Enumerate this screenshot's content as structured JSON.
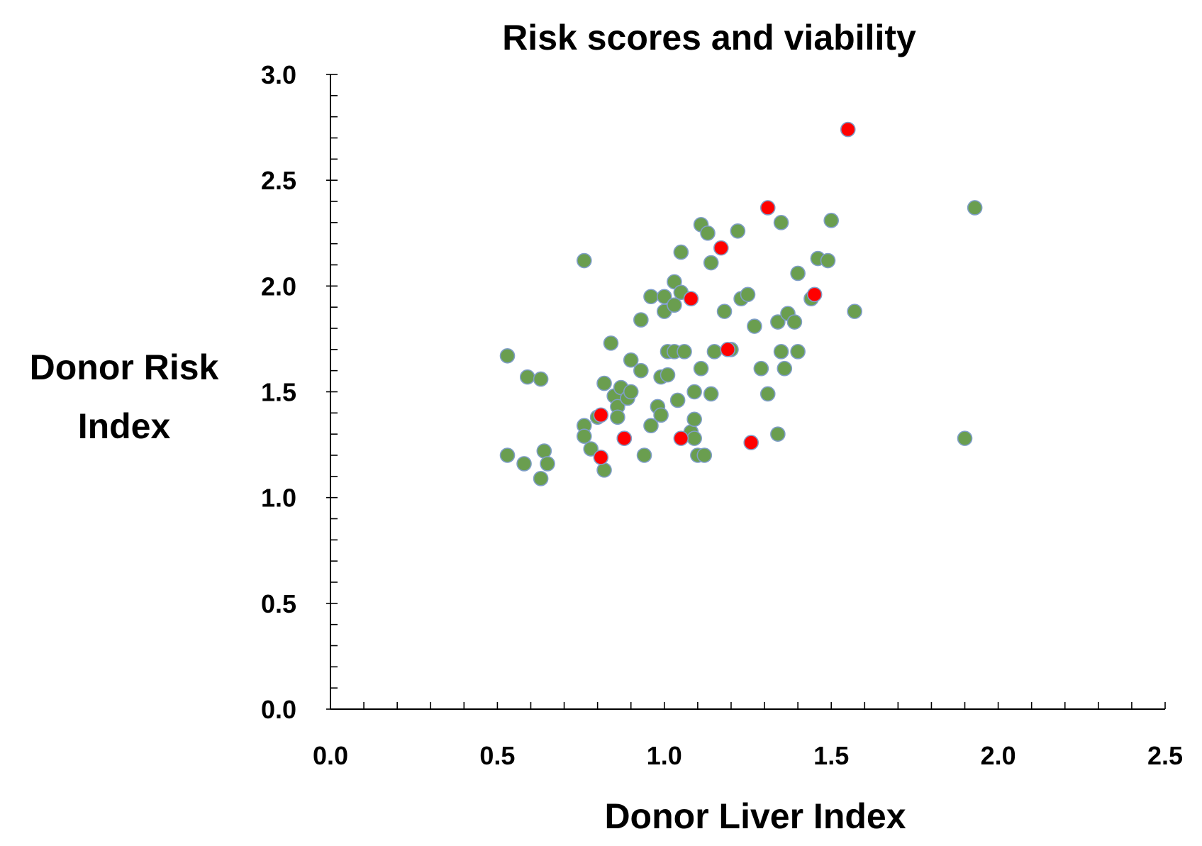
{
  "chart_data": {
    "type": "scatter",
    "title": "Risk scores and viability",
    "xlabel": "Donor Liver Index",
    "ylabel_lines": [
      "Donor Risk",
      "Index"
    ],
    "xlim": [
      0.0,
      2.5
    ],
    "ylim": [
      0.0,
      3.0
    ],
    "x_ticks": [
      0.0,
      0.5,
      1.0,
      1.5,
      2.0,
      2.5
    ],
    "y_ticks": [
      0.0,
      0.5,
      1.0,
      1.5,
      2.0,
      2.5,
      3.0
    ],
    "x_tick_labels": [
      "0.0",
      "0.5",
      "1.0",
      "1.5",
      "2.0",
      "2.5"
    ],
    "y_tick_labels": [
      "0.0",
      "0.5",
      "1.0",
      "1.5",
      "2.0",
      "2.5",
      "3.0"
    ],
    "x_minor_step": 0.1,
    "y_minor_step": 0.1,
    "grid": false,
    "series": [
      {
        "name": "green",
        "color": "#6a9e4f",
        "edge_color": "#7f9ec8",
        "points": [
          [
            0.53,
            1.67
          ],
          [
            0.53,
            1.2
          ],
          [
            0.58,
            1.16
          ],
          [
            0.59,
            1.57
          ],
          [
            0.63,
            1.56
          ],
          [
            0.63,
            1.09
          ],
          [
            0.64,
            1.22
          ],
          [
            0.65,
            1.16
          ],
          [
            0.76,
            2.12
          ],
          [
            0.76,
            1.34
          ],
          [
            0.76,
            1.29
          ],
          [
            0.78,
            1.23
          ],
          [
            0.8,
            1.38
          ],
          [
            0.82,
            1.13
          ],
          [
            0.82,
            1.54
          ],
          [
            0.84,
            1.73
          ],
          [
            0.85,
            1.48
          ],
          [
            0.86,
            1.43
          ],
          [
            0.86,
            1.38
          ],
          [
            0.87,
            1.52
          ],
          [
            0.88,
            1.28
          ],
          [
            0.89,
            1.47
          ],
          [
            0.9,
            1.65
          ],
          [
            0.9,
            1.5
          ],
          [
            0.93,
            1.84
          ],
          [
            0.93,
            1.6
          ],
          [
            0.94,
            1.2
          ],
          [
            0.96,
            1.95
          ],
          [
            0.96,
            1.34
          ],
          [
            0.98,
            1.43
          ],
          [
            0.99,
            1.57
          ],
          [
            0.99,
            1.39
          ],
          [
            1.0,
            1.88
          ],
          [
            1.0,
            1.95
          ],
          [
            1.01,
            1.58
          ],
          [
            1.01,
            1.69
          ],
          [
            1.03,
            2.02
          ],
          [
            1.03,
            1.91
          ],
          [
            1.03,
            1.69
          ],
          [
            1.04,
            1.46
          ],
          [
            1.05,
            2.16
          ],
          [
            1.05,
            1.97
          ],
          [
            1.06,
            1.69
          ],
          [
            1.08,
            1.31
          ],
          [
            1.09,
            1.5
          ],
          [
            1.09,
            1.37
          ],
          [
            1.09,
            1.28
          ],
          [
            1.1,
            1.2
          ],
          [
            1.11,
            2.29
          ],
          [
            1.11,
            1.61
          ],
          [
            1.12,
            1.2
          ],
          [
            1.13,
            2.25
          ],
          [
            1.14,
            2.11
          ],
          [
            1.14,
            1.49
          ],
          [
            1.15,
            1.69
          ],
          [
            1.18,
            1.88
          ],
          [
            1.2,
            1.7
          ],
          [
            1.22,
            2.26
          ],
          [
            1.23,
            1.94
          ],
          [
            1.25,
            1.96
          ],
          [
            1.27,
            1.81
          ],
          [
            1.29,
            1.61
          ],
          [
            1.31,
            1.49
          ],
          [
            1.34,
            1.3
          ],
          [
            1.34,
            1.83
          ],
          [
            1.35,
            2.3
          ],
          [
            1.35,
            1.69
          ],
          [
            1.36,
            1.61
          ],
          [
            1.37,
            1.87
          ],
          [
            1.39,
            1.83
          ],
          [
            1.4,
            2.06
          ],
          [
            1.4,
            1.69
          ],
          [
            1.44,
            1.94
          ],
          [
            1.46,
            2.13
          ],
          [
            1.49,
            2.12
          ],
          [
            1.5,
            2.31
          ],
          [
            1.57,
            1.88
          ],
          [
            1.9,
            1.28
          ],
          [
            1.93,
            2.37
          ]
        ]
      },
      {
        "name": "red",
        "color": "#ff0000",
        "edge_color": "#7f9ec8",
        "points": [
          [
            0.81,
            1.39
          ],
          [
            0.81,
            1.19
          ],
          [
            0.88,
            1.28
          ],
          [
            1.05,
            1.28
          ],
          [
            1.08,
            1.94
          ],
          [
            1.17,
            2.18
          ],
          [
            1.19,
            1.7
          ],
          [
            1.26,
            1.26
          ],
          [
            1.31,
            2.37
          ],
          [
            1.45,
            1.96
          ],
          [
            1.55,
            2.74
          ]
        ]
      }
    ]
  }
}
